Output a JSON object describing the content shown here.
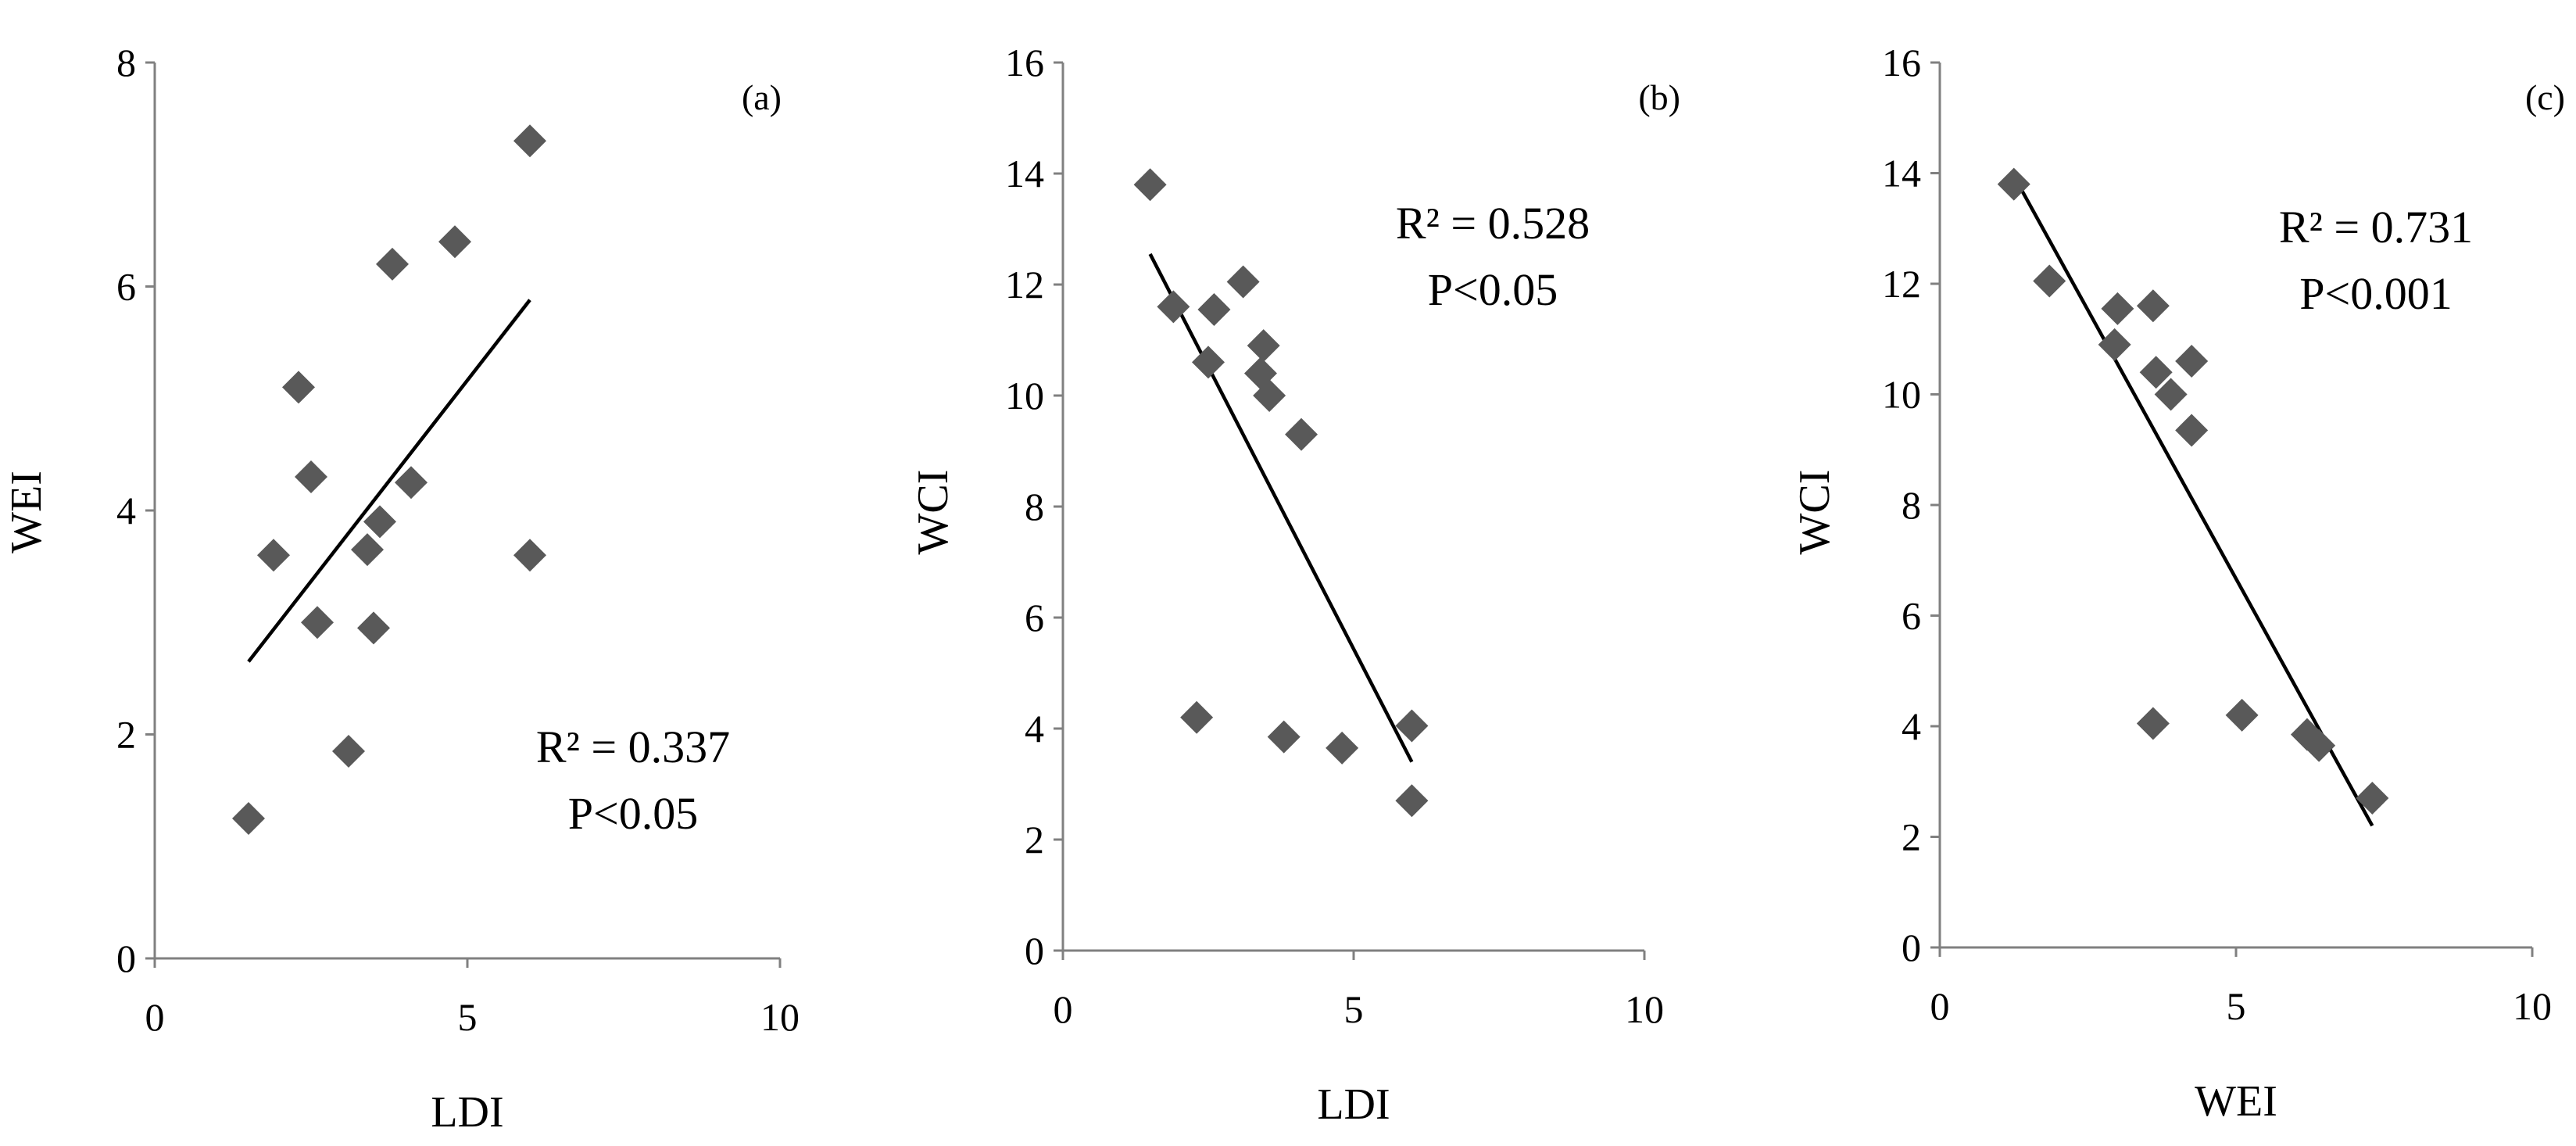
{
  "chart_data": [
    {
      "type": "scatter",
      "panel_label": "(a)",
      "xlabel": "LDI",
      "ylabel": "WEI",
      "xlim": [
        0,
        10
      ],
      "ylim": [
        0,
        8
      ],
      "xticks": [
        0,
        5,
        10
      ],
      "yticks": [
        0,
        2,
        4,
        6,
        8
      ],
      "xtick_labels": [
        "0",
        "5",
        "10"
      ],
      "ytick_labels": [
        "0",
        "2",
        "4",
        "6",
        "8"
      ],
      "points": [
        {
          "x": 1.5,
          "y": 1.25
        },
        {
          "x": 1.9,
          "y": 3.6
        },
        {
          "x": 2.3,
          "y": 5.1
        },
        {
          "x": 2.5,
          "y": 4.3
        },
        {
          "x": 2.6,
          "y": 3.0
        },
        {
          "x": 3.1,
          "y": 1.85
        },
        {
          "x": 3.4,
          "y": 3.65
        },
        {
          "x": 3.5,
          "y": 2.95
        },
        {
          "x": 3.6,
          "y": 3.9
        },
        {
          "x": 3.8,
          "y": 6.2
        },
        {
          "x": 4.1,
          "y": 4.25
        },
        {
          "x": 4.8,
          "y": 6.4
        },
        {
          "x": 6.0,
          "y": 7.3
        },
        {
          "x": 6.0,
          "y": 3.6
        }
      ],
      "trendline": {
        "x": [
          1.5,
          6.0
        ],
        "y": [
          2.65,
          5.88
        ]
      },
      "r2_text": "R² = 0.337",
      "p_text": "P<0.05",
      "grid": false,
      "marker_color": "#595959"
    },
    {
      "type": "scatter",
      "panel_label": "(b)",
      "xlabel": "LDI",
      "ylabel": "WCI",
      "xlim": [
        0,
        10
      ],
      "ylim": [
        0,
        16
      ],
      "xticks": [
        0,
        5,
        10
      ],
      "yticks": [
        0,
        2,
        4,
        6,
        8,
        10,
        12,
        14,
        16
      ],
      "xtick_labels": [
        "0",
        "5",
        "10"
      ],
      "ytick_labels": [
        "0",
        "2",
        "4",
        "6",
        "8",
        "10",
        "12",
        "14",
        "16"
      ],
      "points": [
        {
          "x": 1.5,
          "y": 13.8
        },
        {
          "x": 1.9,
          "y": 11.6
        },
        {
          "x": 2.3,
          "y": 4.2
        },
        {
          "x": 2.5,
          "y": 10.6
        },
        {
          "x": 2.6,
          "y": 11.55
        },
        {
          "x": 3.1,
          "y": 12.05
        },
        {
          "x": 3.4,
          "y": 10.4
        },
        {
          "x": 3.45,
          "y": 10.9
        },
        {
          "x": 3.55,
          "y": 10.0
        },
        {
          "x": 3.8,
          "y": 3.85
        },
        {
          "x": 4.1,
          "y": 9.3
        },
        {
          "x": 4.8,
          "y": 3.65
        },
        {
          "x": 6.0,
          "y": 4.05
        },
        {
          "x": 6.0,
          "y": 2.7
        }
      ],
      "trendline": {
        "x": [
          1.5,
          6.0
        ],
        "y": [
          12.55,
          3.4
        ]
      },
      "r2_text": "R² = 0.528",
      "p_text": "P<0.05",
      "grid": false,
      "marker_color": "#595959"
    },
    {
      "type": "scatter",
      "panel_label": "(c)",
      "xlabel": "WEI",
      "ylabel": "WCI",
      "xlim": [
        0,
        10
      ],
      "ylim": [
        0,
        16
      ],
      "xticks": [
        0,
        5,
        10
      ],
      "yticks": [
        0,
        2,
        4,
        6,
        8,
        10,
        12,
        14,
        16
      ],
      "xtick_labels": [
        "0",
        "5",
        "10"
      ],
      "ytick_labels": [
        "0",
        "2",
        "4",
        "6",
        "8",
        "10",
        "12",
        "14",
        "16"
      ],
      "points": [
        {
          "x": 1.25,
          "y": 13.8
        },
        {
          "x": 1.85,
          "y": 12.05
        },
        {
          "x": 2.95,
          "y": 10.9
        },
        {
          "x": 3.0,
          "y": 11.55
        },
        {
          "x": 3.6,
          "y": 11.6
        },
        {
          "x": 3.6,
          "y": 4.05
        },
        {
          "x": 3.65,
          "y": 10.4
        },
        {
          "x": 3.9,
          "y": 10.0
        },
        {
          "x": 4.25,
          "y": 10.6
        },
        {
          "x": 4.25,
          "y": 9.35
        },
        {
          "x": 5.1,
          "y": 4.2
        },
        {
          "x": 6.2,
          "y": 3.85
        },
        {
          "x": 6.4,
          "y": 3.65
        },
        {
          "x": 7.3,
          "y": 2.7
        }
      ],
      "trendline": {
        "x": [
          1.25,
          7.3
        ],
        "y": [
          13.95,
          2.2
        ]
      },
      "r2_text": "R² = 0.731",
      "p_text": "P<0.001",
      "grid": false,
      "marker_color": "#595959"
    }
  ]
}
